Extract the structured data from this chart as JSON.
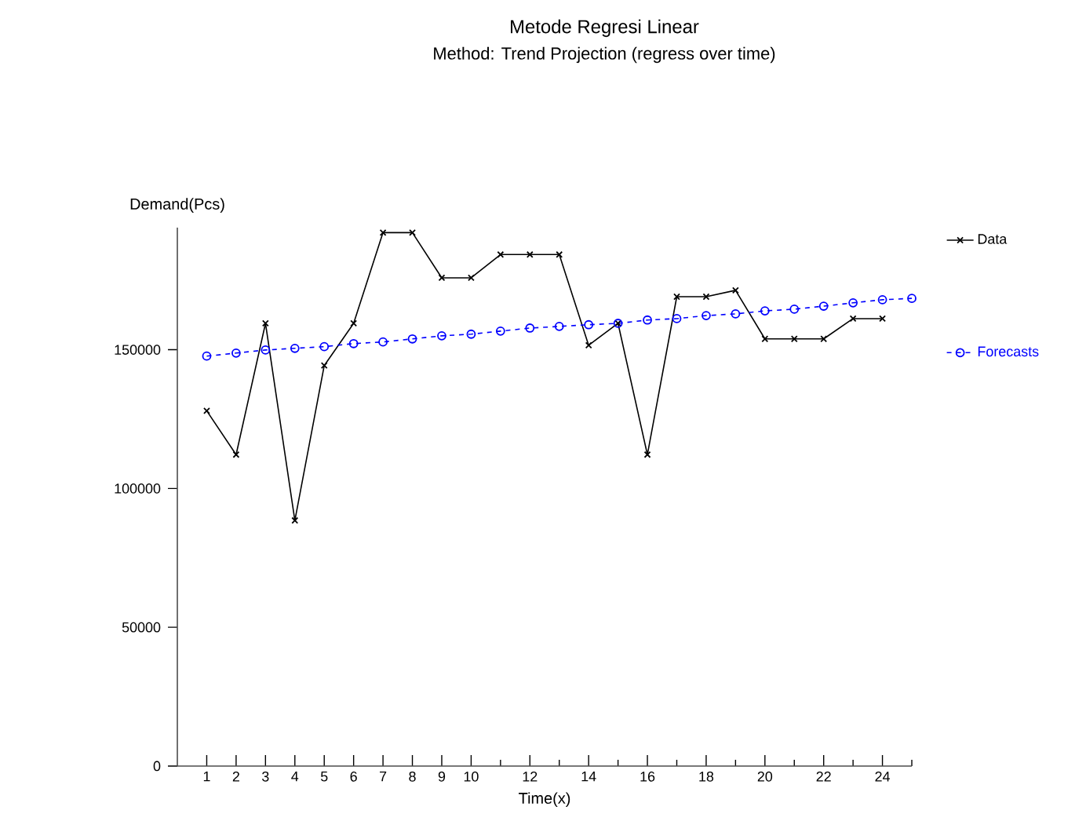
{
  "chart_data": {
    "type": "line",
    "title": "Metode Regresi Linear",
    "subtitle": "Method: Trend Projection (regress over time)",
    "xlabel": "Time(x)",
    "ylabel": "Demand(Pcs)",
    "x": [
      1,
      2,
      3,
      4,
      5,
      6,
      7,
      8,
      9,
      10,
      11,
      12,
      13,
      14,
      15,
      16,
      17,
      18,
      19,
      20,
      21,
      22,
      23,
      24,
      25
    ],
    "series": [
      {
        "name": "Data",
        "color": "#000000",
        "marker": "cross",
        "line_style": "solid",
        "values": [
          128000,
          112200,
          159500,
          88500,
          144300,
          159500,
          192200,
          192200,
          175900,
          175900,
          184300,
          184300,
          184300,
          151600,
          159500,
          112200,
          169100,
          169100,
          171400,
          153900,
          153900,
          153900,
          161200,
          161200,
          null
        ]
      },
      {
        "name": "Forecasts",
        "color": "#0000ff",
        "marker": "circle",
        "line_style": "dashed",
        "values": [
          147700,
          148800,
          149900,
          150500,
          151100,
          152200,
          152800,
          153900,
          155000,
          155600,
          156700,
          157800,
          158400,
          159000,
          159500,
          160700,
          161200,
          162300,
          162900,
          164000,
          164600,
          165700,
          166900,
          168000,
          168500
        ]
      }
    ],
    "xlim": [
      0,
      25
    ],
    "ylim": [
      0,
      194000
    ],
    "xticks": [
      1,
      2,
      3,
      4,
      5,
      6,
      7,
      8,
      9,
      10,
      {
        "value": 11,
        "label": null
      },
      12,
      {
        "value": 13,
        "label": null
      },
      14,
      {
        "value": 15,
        "label": null
      },
      16,
      {
        "value": 17,
        "label": null
      },
      18,
      {
        "value": 19,
        "label": null
      },
      20,
      {
        "value": 21,
        "label": null
      },
      22,
      {
        "value": 23,
        "label": null
      },
      24,
      {
        "value": 25,
        "label": null
      }
    ],
    "yticks": [
      0,
      50000,
      100000,
      150000
    ],
    "grid": false,
    "legend": "right"
  }
}
